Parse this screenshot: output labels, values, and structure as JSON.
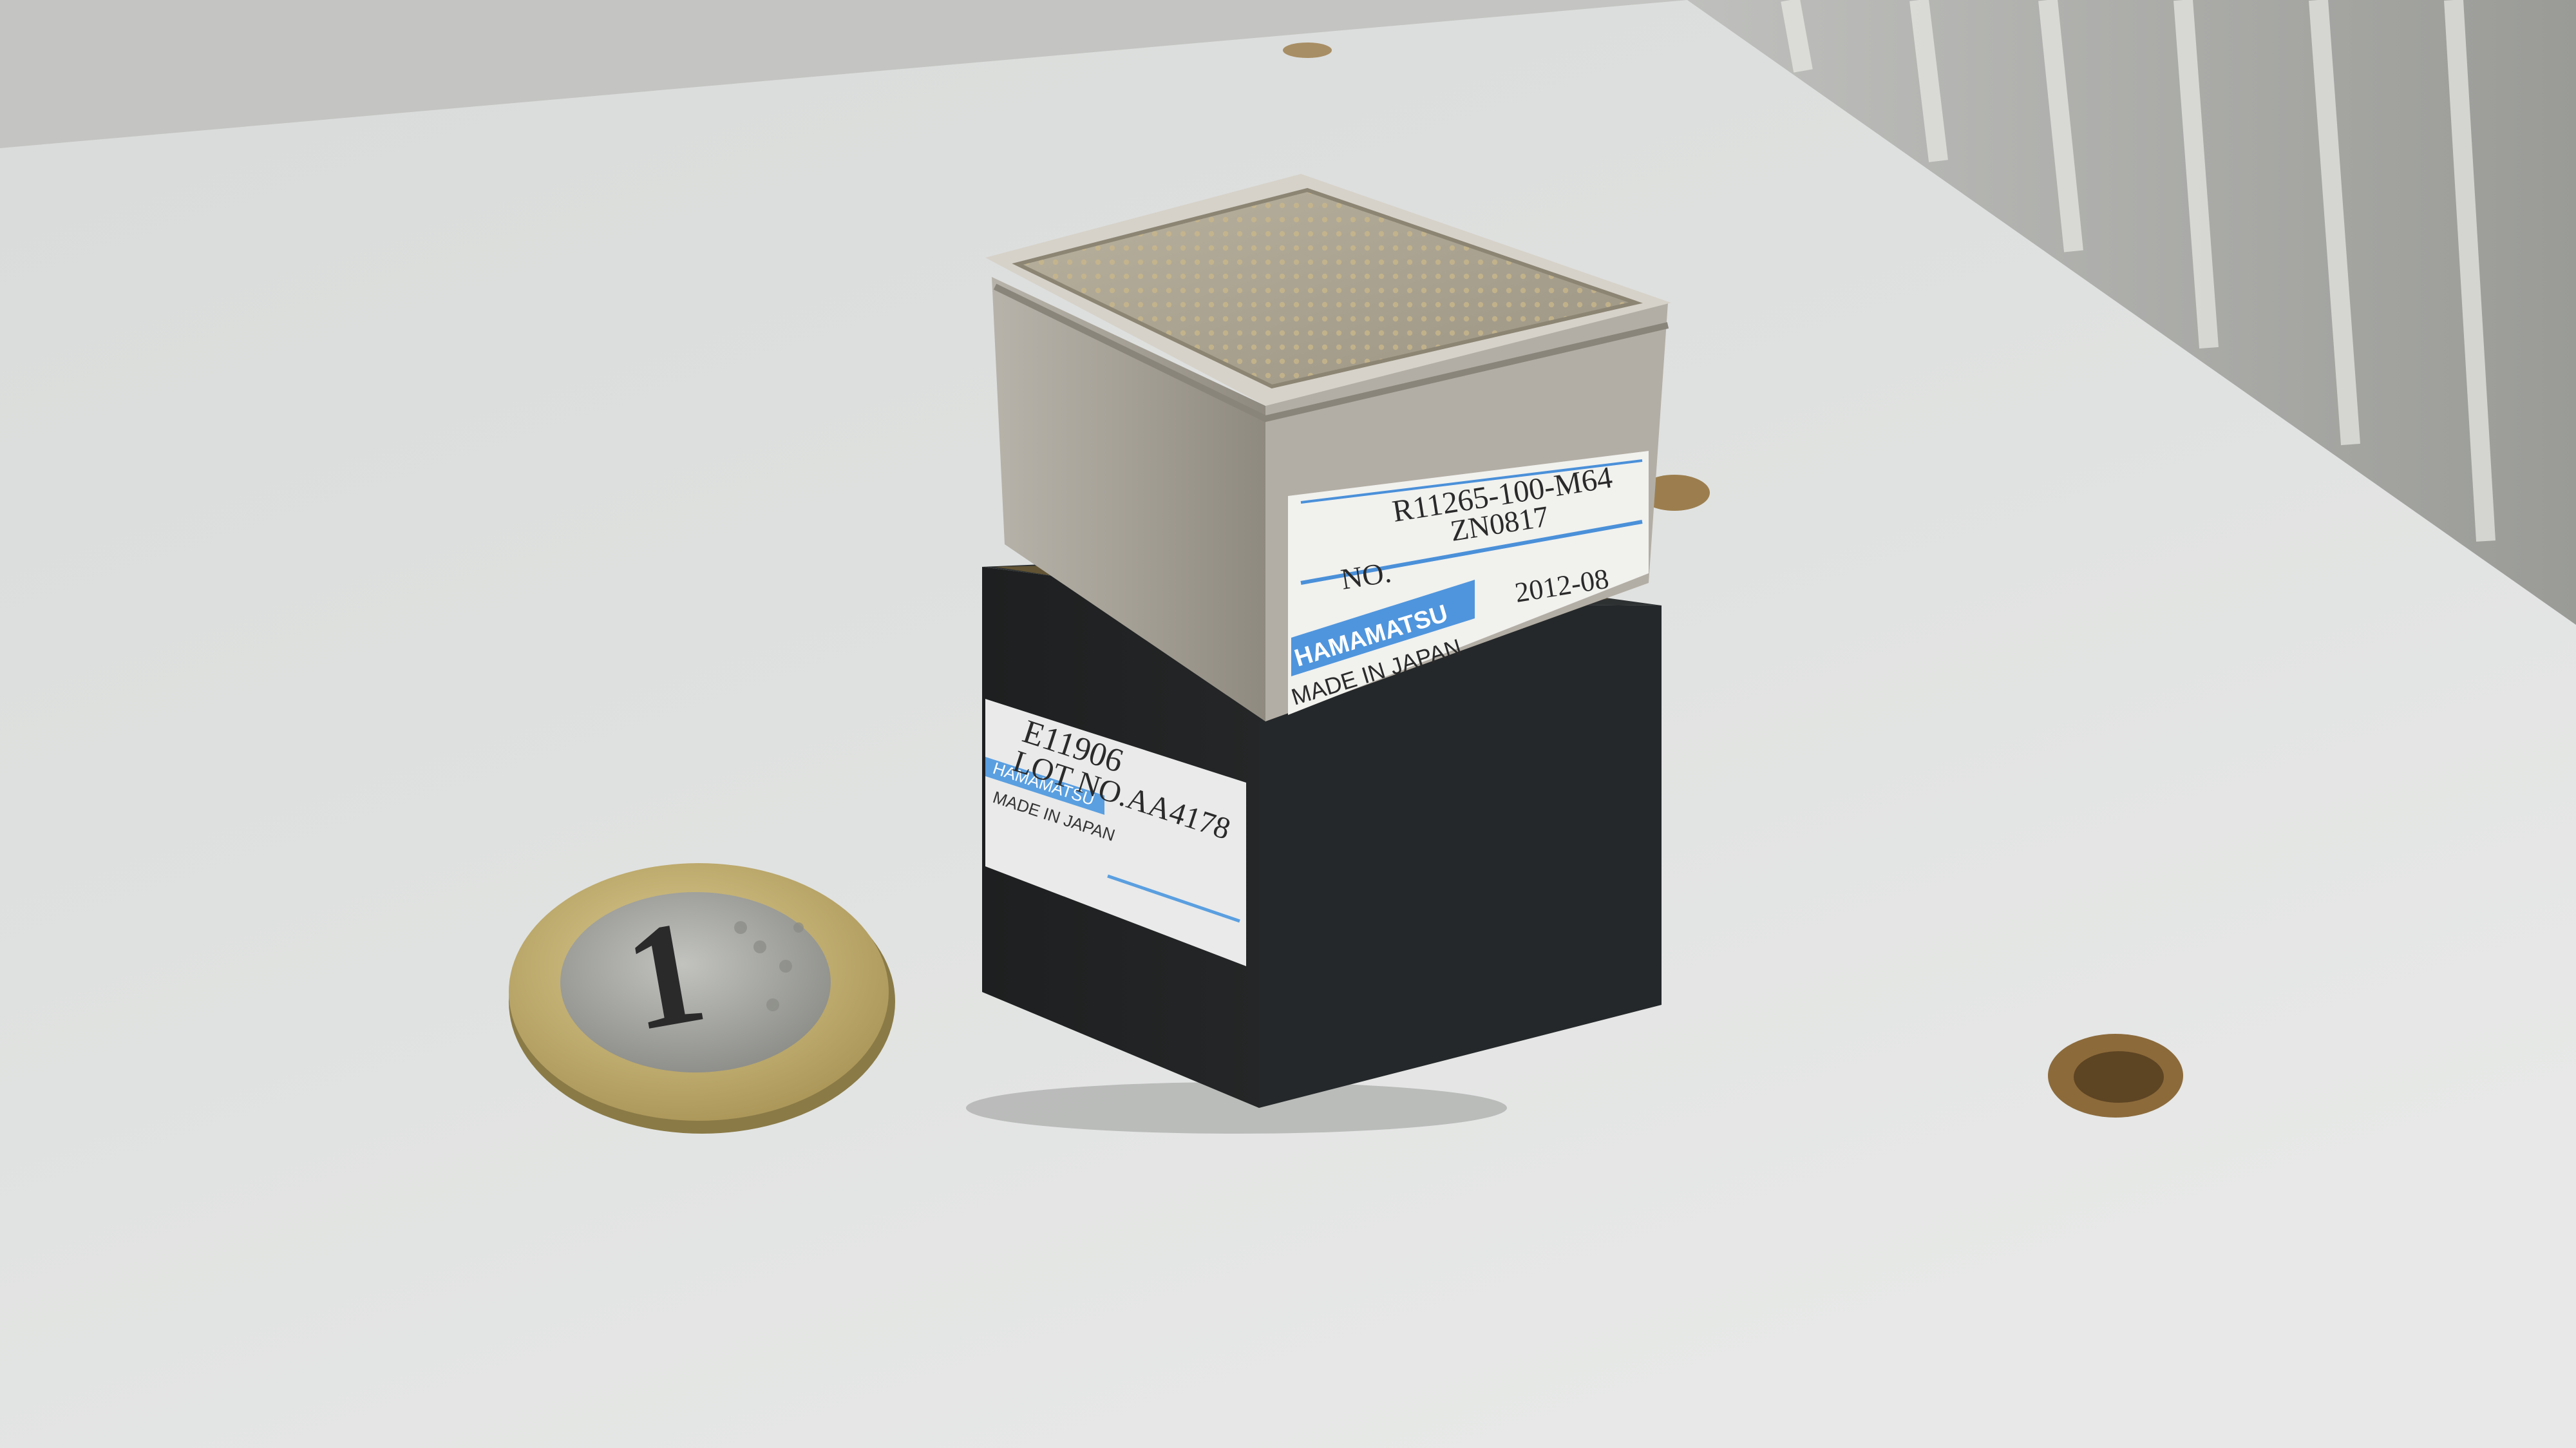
{
  "photo": {
    "top_module_label": {
      "model": "R11265-100-M64",
      "serial_prefix": "NO.",
      "serial": "ZN0817",
      "date": "2012-08",
      "brand": "HAMAMATSU",
      "origin": "MADE IN JAPAN"
    },
    "base_module_label": {
      "model": "E11906",
      "lot": "LOT NO.AA4178",
      "brand": "HAMAMATSU",
      "origin": "MADE IN JAPAN"
    },
    "coin": {
      "denomination": "1"
    },
    "colors": {
      "table": "#dcdedd",
      "wall": "#b8b8b5",
      "metal": "#a8a49b",
      "black_base": "#1c1e1f",
      "label_blue": "#4a90d9",
      "coin_ring": "#c8b67a",
      "coin_center": "#a8a8a4"
    }
  }
}
